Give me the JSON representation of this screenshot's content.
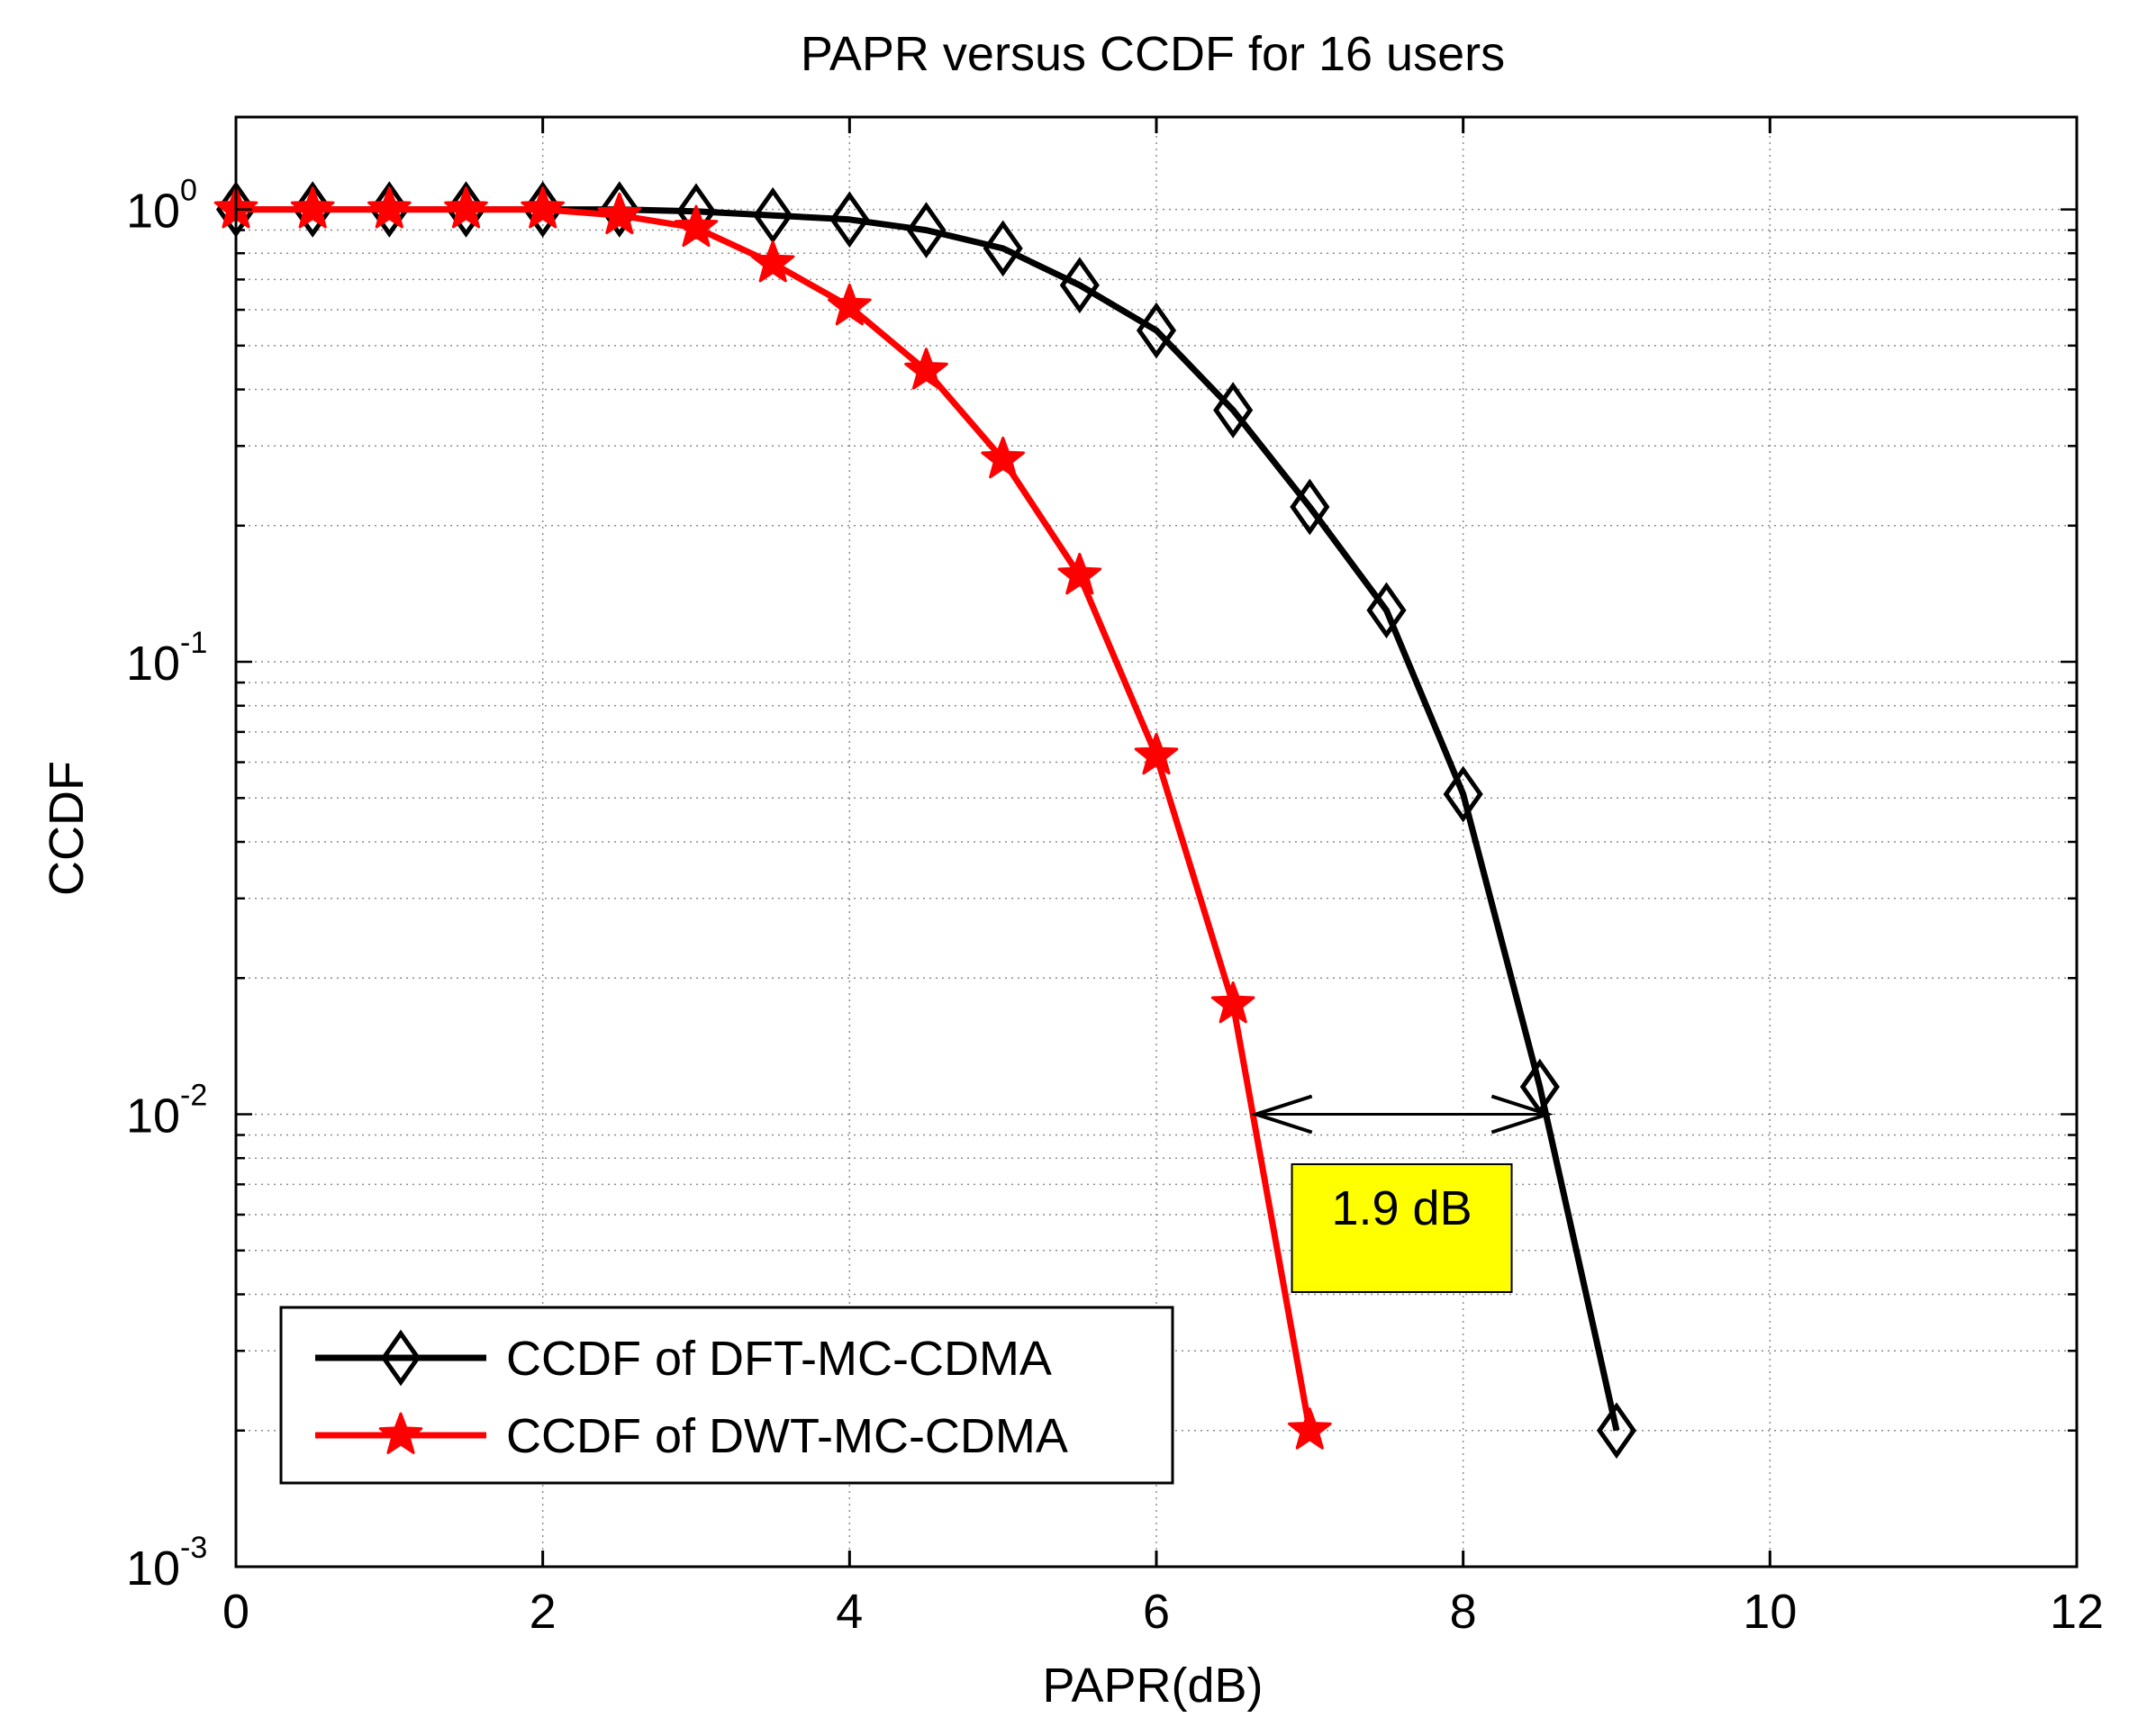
{
  "chart_data": {
    "type": "line",
    "title": "PAPR versus CCDF for 16 users",
    "xlabel": "PAPR(dB)",
    "ylabel": "CCDF",
    "xlim": [
      0,
      12
    ],
    "ylim": [
      0.001,
      1.6
    ],
    "yscale": "log",
    "grid": true,
    "xticks": [
      0,
      2,
      4,
      6,
      8,
      10,
      12
    ],
    "xtick_labels": [
      "0",
      "2",
      "4",
      "6",
      "8",
      "10",
      "12"
    ],
    "yticks": [
      {
        "value": 1,
        "base": "10",
        "exp": "0"
      },
      {
        "value": 0.1,
        "base": "10",
        "exp": "-1"
      },
      {
        "value": 0.01,
        "base": "10",
        "exp": "-2"
      },
      {
        "value": 0.001,
        "base": "10",
        "exp": "-3"
      }
    ],
    "legend_position": "bottom-left",
    "series": [
      {
        "name": "CCDF of DFT-MC-CDMA",
        "color": "#000000",
        "marker": "diamond",
        "x": [
          0,
          0.5,
          1,
          1.5,
          2,
          2.5,
          3,
          3.5,
          4,
          4.5,
          5,
          5.5,
          6,
          6.5,
          7,
          7.5,
          8,
          8.5,
          9
        ],
        "y": [
          1,
          1,
          1,
          1,
          1,
          1,
          0.99,
          0.97,
          0.95,
          0.9,
          0.82,
          0.68,
          0.54,
          0.36,
          0.22,
          0.13,
          0.051,
          0.0115,
          0.002
        ]
      },
      {
        "name": "CCDF of DWT-MC-CDMA",
        "color": "#ff0000",
        "marker": "star",
        "x": [
          0,
          0.5,
          1,
          1.5,
          2,
          2.5,
          3,
          3.5,
          4,
          4.5,
          5,
          5.5,
          6,
          6.5,
          7
        ],
        "y": [
          1,
          1,
          1,
          1,
          1,
          0.97,
          0.91,
          0.76,
          0.61,
          0.44,
          0.28,
          0.155,
          0.062,
          0.0175,
          0.002
        ]
      }
    ],
    "annotations": [
      {
        "type": "double-arrow",
        "x_start": 6.65,
        "x_end": 8.55,
        "y": 0.01
      },
      {
        "type": "text-box",
        "text": "1.9 dB",
        "x": 7.6,
        "y": 0.0055,
        "background": "#ffff00"
      }
    ]
  }
}
